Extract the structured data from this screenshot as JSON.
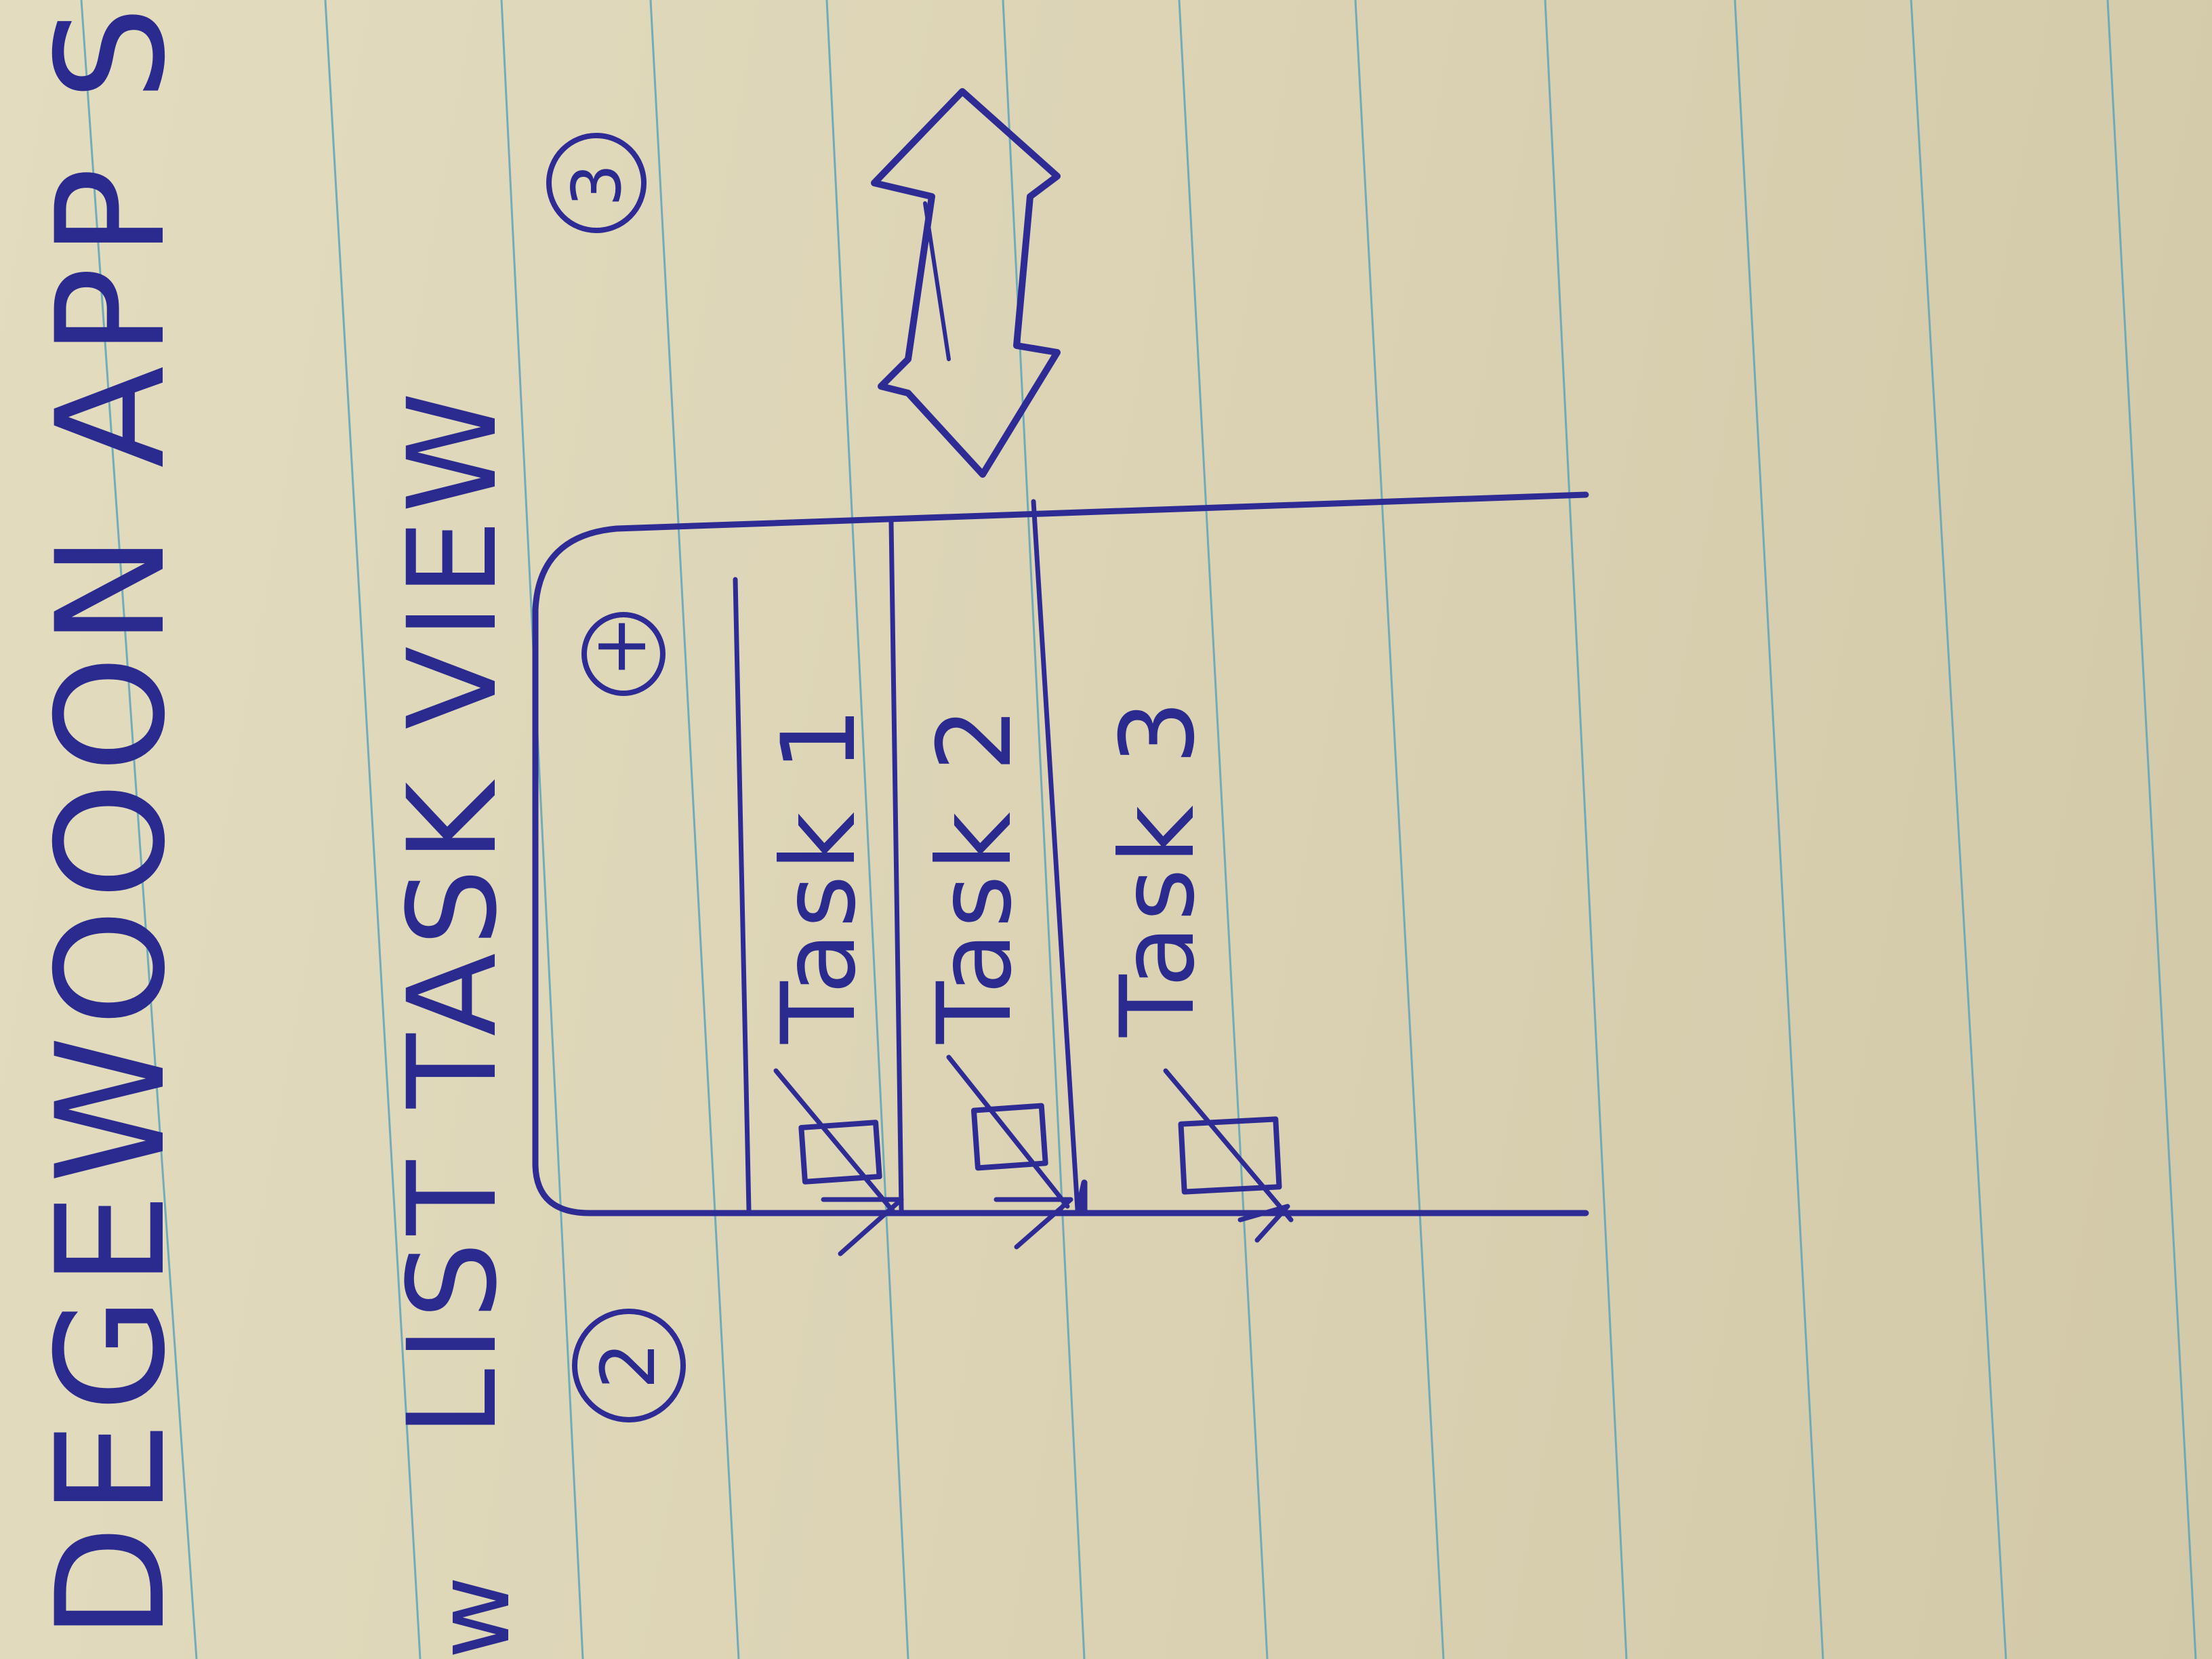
{
  "sketch": {
    "title_line": "DEGEWOOON APP SK",
    "heading_prefix": "w",
    "heading": "LIST TASK VIEW",
    "marker_left": "2",
    "marker_right": "3",
    "add_symbol": "+",
    "tasks": [
      {
        "label": "Task 1",
        "checked": true
      },
      {
        "label": "Task 2",
        "checked": true
      },
      {
        "label": "Task 3",
        "checked": false
      }
    ],
    "scroll_hint_icon": "double-arrow-icon"
  },
  "colors": {
    "paper": "#ddd6b7",
    "ruled_line": "#5fa3b8",
    "ink": "#2e2c94"
  }
}
